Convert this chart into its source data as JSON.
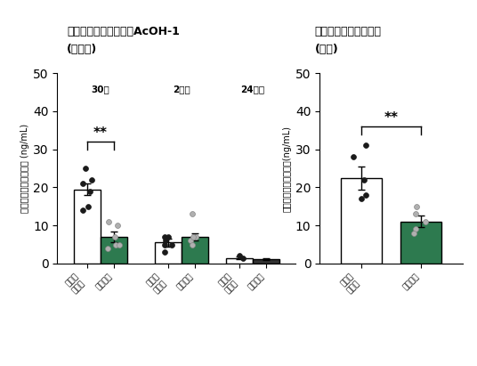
{
  "left_title_line1": "デオキシニバレノールAcOH-1",
  "left_title_line2": "(血漿中)",
  "right_title_line1": "デオキシニバレノール",
  "right_title_line2": "(尿中)",
  "ylabel_left": "デオキシニバレノール (ng/mL)",
  "ylabel_right": "デオキシニバレノール(ng/mL)",
  "ylim": [
    0,
    50
  ],
  "yticks": [
    0,
    10,
    20,
    30,
    40,
    50
  ],
  "time_labels": [
    "30分",
    "2時間",
    "24時間"
  ],
  "left_bars": {
    "30min_control_mean": 19.5,
    "30min_control_sem": 1.5,
    "30min_chlorella_mean": 7.0,
    "30min_chlorella_sem": 1.5,
    "2h_control_mean": 5.5,
    "2h_control_sem": 1.0,
    "2h_chlorella_mean": 7.0,
    "2h_chlorella_sem": 1.0,
    "24h_control_mean": 1.5,
    "24h_control_sem": 0.3,
    "24h_chlorella_mean": 1.2,
    "24h_chlorella_sem": 0.2
  },
  "left_dots": {
    "30min_control": [
      25,
      22,
      19,
      15,
      14,
      21
    ],
    "30min_chlorella": [
      11,
      10,
      7,
      5,
      4,
      5
    ],
    "2h_control": [
      5,
      7,
      3,
      5,
      6,
      7
    ],
    "2h_chlorella": [
      7,
      13,
      7,
      6,
      5,
      7
    ],
    "24h_control": [
      2,
      1.5
    ],
    "24h_chlorella": []
  },
  "right_bars": {
    "control_mean": 22.5,
    "control_sem": 3.0,
    "chlorella_mean": 11.0,
    "chlorella_sem": 1.5
  },
  "right_dots": {
    "control": [
      31,
      28,
      22,
      18,
      17
    ],
    "chlorella": [
      15,
      13,
      11,
      9,
      8
    ]
  },
  "bar_color_white": "#ffffff",
  "bar_color_green": "#2d7a4f",
  "bar_edgecolor": "#000000",
  "dot_color_black": "#1a1a1a",
  "dot_color_gray": "#b0b0b0",
  "significance_left": "**",
  "significance_right": "**",
  "background_color": "#ffffff"
}
